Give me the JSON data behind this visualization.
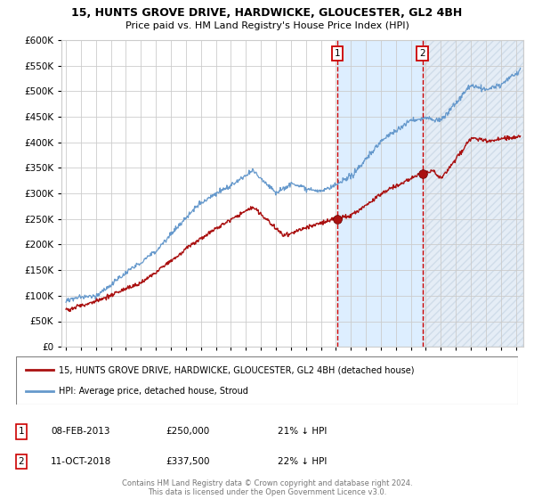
{
  "title_line1": "15, HUNTS GROVE DRIVE, HARDWICKE, GLOUCESTER, GL2 4BH",
  "title_line2": "Price paid vs. HM Land Registry's House Price Index (HPI)",
  "legend_label1": "15, HUNTS GROVE DRIVE, HARDWICKE, GLOUCESTER, GL2 4BH (detached house)",
  "legend_label2": "HPI: Average price, detached house, Stroud",
  "marker1_date": "08-FEB-2013",
  "marker1_price": "£250,000",
  "marker1_hpi": "21% ↓ HPI",
  "marker1_x": 2013.1,
  "marker1_y": 250000,
  "marker2_date": "11-OCT-2018",
  "marker2_price": "£337,500",
  "marker2_hpi": "22% ↓ HPI",
  "marker2_x": 2018.78,
  "marker2_y": 337500,
  "ylim": [
    0,
    600000
  ],
  "xlim_start": 1994.7,
  "xlim_end": 2025.5,
  "yticks": [
    0,
    50000,
    100000,
    150000,
    200000,
    250000,
    300000,
    350000,
    400000,
    450000,
    500000,
    550000,
    600000
  ],
  "red_color": "#aa1111",
  "blue_color": "#6699cc",
  "vline_color": "#cc0000",
  "bg_color": "#ffffff",
  "highlight_color": "#ddeeff",
  "hatch_color": "#ccddee",
  "footer_text": "Contains HM Land Registry data © Crown copyright and database right 2024.\nThis data is licensed under the Open Government Licence v3.0."
}
